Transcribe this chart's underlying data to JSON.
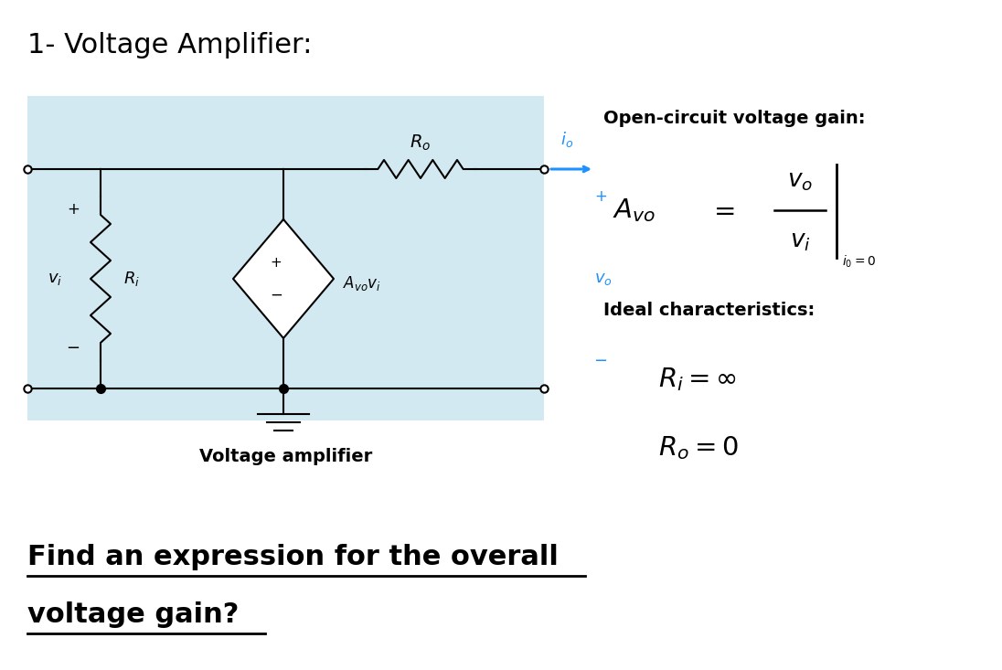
{
  "title": "1- Voltage Amplifier:",
  "title_fontsize": 22,
  "bg_color": "#ffffff",
  "circuit_bg": "#add8e6",
  "heading_right": "Open-circuit voltage gain:",
  "ideal_heading": "Ideal characteristics:",
  "caption": "Voltage amplifier",
  "bottom_text_line1": "Find an expression for the overall",
  "bottom_text_line2": "voltage gain?",
  "blue_color": "#1e90ff",
  "black": "#000000"
}
